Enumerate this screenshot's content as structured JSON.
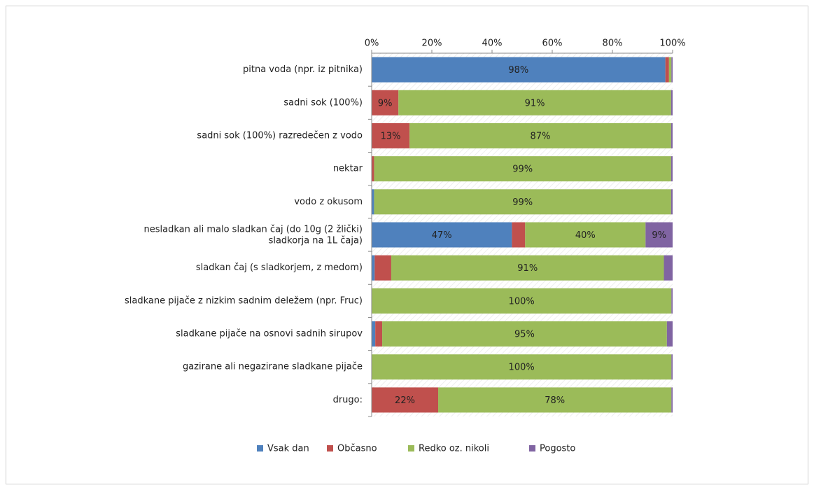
{
  "chart_data": {
    "type": "stacked_barh",
    "categories": [
      "pitna voda (npr. iz pitnika)",
      "sadni sok (100%)",
      "sadni sok (100%) razredečen z vodo",
      "nektar",
      "vodo z okusom",
      "nesladkan ali malo sladkan čaj (do 10g (2 žlički) sladkorja na 1L čaja)",
      "sladkan čaj (s sladkorjem, z medom)",
      "sladkane pijače z nizkim sadnim deležem (npr. Fruc)",
      "sladkane pijače na osnovi sadnih sirupov",
      "gazirane ali negazirane sladkane pijače",
      "drugo:"
    ],
    "series": [
      {
        "name": "Vsak dan",
        "color": "#4f81bd",
        "values": [
          97.6,
          0,
          0,
          0,
          0.8,
          46.6,
          1.0,
          0,
          1.2,
          0,
          0
        ],
        "value_labels": [
          "98%",
          null,
          null,
          null,
          null,
          "47%",
          null,
          null,
          null,
          null,
          null
        ]
      },
      {
        "name": "Občasno",
        "color": "#c0504d",
        "values": [
          1.2,
          8.9,
          12.6,
          0.8,
          0,
          4.4,
          5.5,
          0,
          2.3,
          0,
          22.1
        ],
        "value_labels": [
          null,
          "9%",
          "13%",
          null,
          null,
          null,
          null,
          null,
          null,
          null,
          "22%"
        ]
      },
      {
        "name": "Redko oz. nikoli",
        "color": "#9bbb59",
        "values": [
          0.8,
          90.6,
          86.9,
          98.7,
          98.7,
          40,
          90.6,
          99.6,
          94.6,
          99.6,
          77.5
        ],
        "value_labels": [
          null,
          "91%",
          "87%",
          "99%",
          "99%",
          "40%",
          "91%",
          "100%",
          "95%",
          "100%",
          "78%"
        ]
      },
      {
        "name": "Pogosto",
        "color": "#8064a2",
        "values": [
          0.4,
          0.5,
          0.5,
          0.5,
          0.5,
          9,
          2.9,
          0.4,
          1.9,
          0.4,
          0.4
        ],
        "value_labels": [
          null,
          null,
          null,
          null,
          null,
          "9%",
          null,
          null,
          null,
          null,
          null
        ]
      }
    ],
    "xlim": [
      0,
      100
    ],
    "xticks": [
      {
        "value": 0,
        "label": "0%"
      },
      {
        "value": 20,
        "label": "20%"
      },
      {
        "value": 40,
        "label": "40%"
      },
      {
        "value": 60,
        "label": "60%"
      },
      {
        "value": 80,
        "label": "80%"
      },
      {
        "value": 100,
        "label": "100%"
      }
    ],
    "legend": "bottom"
  }
}
